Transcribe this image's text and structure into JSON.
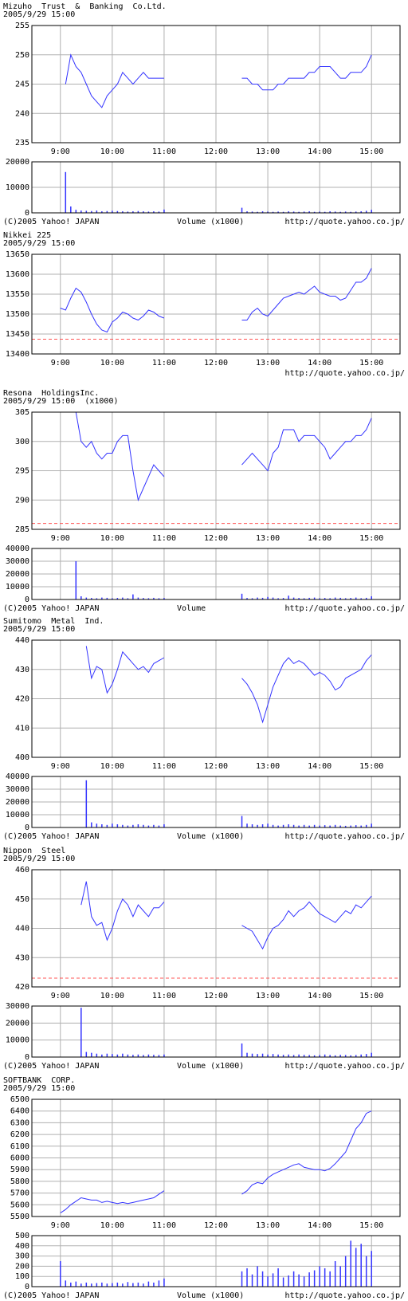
{
  "chart_data": [
    {
      "type": "line",
      "title": "Mizuho  Trust  &  Banking  Co.Ltd.",
      "subtitle": "2005/9/29 15:00",
      "x": [
        9,
        9.1,
        9.2,
        9.3,
        9.4,
        9.5,
        9.6,
        9.7,
        9.8,
        9.9,
        10,
        10.1,
        10.2,
        10.3,
        10.4,
        10.5,
        10.6,
        10.7,
        10.8,
        10.9,
        11,
        12,
        12.5,
        12.6,
        12.7,
        12.8,
        12.9,
        13,
        13.1,
        13.2,
        13.3,
        13.4,
        13.5,
        13.6,
        13.7,
        13.8,
        13.9,
        14,
        14.1,
        14.2,
        14.3,
        14.4,
        14.5,
        14.6,
        14.7,
        14.8,
        14.9,
        15
      ],
      "values": [
        null,
        245,
        250,
        248,
        247,
        245,
        243,
        242,
        241,
        243,
        244,
        245,
        247,
        246,
        245,
        246,
        247,
        246,
        246,
        246,
        246,
        null,
        246,
        246,
        245,
        245,
        244,
        244,
        244,
        245,
        245,
        246,
        246,
        246,
        246,
        247,
        247,
        248,
        248,
        248,
        247,
        246,
        246,
        247,
        247,
        247,
        248,
        250
      ],
      "color": "#3333ff",
      "xlim": [
        8.45,
        15.55
      ],
      "xticks": [
        {
          "value": 9,
          "label": "9:00"
        },
        {
          "value": 10,
          "label": "10:00"
        },
        {
          "value": 11,
          "label": "11:00"
        },
        {
          "value": 12,
          "label": "12:00"
        },
        {
          "value": 13,
          "label": "13:00"
        },
        {
          "value": 14,
          "label": "14:00"
        },
        {
          "value": 15,
          "label": "15:00"
        }
      ],
      "ylim": [
        235,
        255
      ],
      "yticks": [
        235,
        240,
        245,
        250,
        255
      ],
      "grid": true,
      "ref_line": {
        "value": 235,
        "color": "#ff5555"
      },
      "volume": {
        "label": "Volume (x1000)",
        "color": "#3333ff",
        "ylim": [
          0,
          20000
        ],
        "yticks": [
          0,
          10000,
          20000
        ],
        "values": [
          null,
          16000,
          2500,
          1200,
          900,
          800,
          700,
          900,
          600,
          700,
          800,
          700,
          600,
          500,
          600,
          700,
          600,
          500,
          600,
          500,
          1300,
          null,
          2000,
          600,
          500,
          400,
          600,
          500,
          400,
          500,
          400,
          600,
          500,
          400,
          500,
          600,
          400,
          500,
          400,
          600,
          500,
          400,
          500,
          400,
          500,
          600,
          800,
          1200
        ]
      },
      "copyright": "(C)2005 Yahoo! JAPAN",
      "source": "http://quote.yahoo.co.jp/"
    },
    {
      "type": "line",
      "title": "Nikkei 225",
      "subtitle": "2005/9/29 15:00",
      "x": [
        9,
        9.1,
        9.2,
        9.3,
        9.4,
        9.5,
        9.6,
        9.7,
        9.8,
        9.9,
        10,
        10.1,
        10.2,
        10.3,
        10.4,
        10.5,
        10.6,
        10.7,
        10.8,
        10.9,
        11,
        12,
        12.5,
        12.6,
        12.7,
        12.8,
        12.9,
        13,
        13.1,
        13.2,
        13.3,
        13.4,
        13.5,
        13.6,
        13.7,
        13.8,
        13.9,
        14,
        14.1,
        14.2,
        14.3,
        14.4,
        14.5,
        14.6,
        14.7,
        14.8,
        14.9,
        15
      ],
      "values": [
        13515,
        13510,
        13540,
        13565,
        13555,
        13530,
        13500,
        13475,
        13460,
        13455,
        13480,
        13490,
        13505,
        13500,
        13490,
        13485,
        13495,
        13510,
        13505,
        13495,
        13490,
        null,
        13485,
        13485,
        13505,
        13515,
        13500,
        13495,
        13510,
        13525,
        13540,
        13545,
        13550,
        13555,
        13550,
        13560,
        13570,
        13555,
        13550,
        13545,
        13545,
        13535,
        13540,
        13560,
        13580,
        13580,
        13590,
        13615
      ],
      "color": "#3333ff",
      "xlim": [
        8.45,
        15.55
      ],
      "xticks": [
        {
          "value": 9,
          "label": "9:00"
        },
        {
          "value": 10,
          "label": "10:00"
        },
        {
          "value": 11,
          "label": "11:00"
        },
        {
          "value": 12,
          "label": "12:00"
        },
        {
          "value": 13,
          "label": "13:00"
        },
        {
          "value": 14,
          "label": "14:00"
        },
        {
          "value": 15,
          "label": "15:00"
        }
      ],
      "ylim": [
        13400,
        13650
      ],
      "yticks": [
        13400,
        13450,
        13500,
        13550,
        13600,
        13650
      ],
      "grid": true,
      "ref_line": {
        "value": 13437,
        "color": "#ff5555"
      },
      "source": "http://quote.yahoo.co.jp/"
    },
    {
      "type": "line",
      "title": "Resona  HoldingsInc.",
      "subtitle": "2005/9/29 15:00  (x1000)",
      "x": [
        9,
        9.1,
        9.2,
        9.3,
        9.4,
        9.5,
        9.6,
        9.7,
        9.8,
        9.9,
        10,
        10.1,
        10.2,
        10.3,
        10.4,
        10.5,
        10.6,
        10.7,
        10.8,
        10.9,
        11,
        12,
        12.5,
        12.6,
        12.7,
        12.8,
        12.9,
        13,
        13.1,
        13.2,
        13.3,
        13.4,
        13.5,
        13.6,
        13.7,
        13.8,
        13.9,
        14,
        14.1,
        14.2,
        14.3,
        14.4,
        14.5,
        14.6,
        14.7,
        14.8,
        14.9,
        15
      ],
      "values": [
        null,
        null,
        null,
        305,
        300,
        299,
        300,
        298,
        297,
        298,
        298,
        300,
        301,
        301,
        295,
        290,
        292,
        294,
        296,
        295,
        294,
        null,
        296,
        297,
        298,
        297,
        296,
        295,
        298,
        299,
        302,
        302,
        302,
        300,
        301,
        301,
        301,
        300,
        299,
        297,
        298,
        299,
        300,
        300,
        301,
        301,
        302,
        304
      ],
      "color": "#3333ff",
      "xlim": [
        8.45,
        15.55
      ],
      "xticks": [
        {
          "value": 9,
          "label": "9:00"
        },
        {
          "value": 10,
          "label": "10:00"
        },
        {
          "value": 11,
          "label": "11:00"
        },
        {
          "value": 12,
          "label": "12:00"
        },
        {
          "value": 13,
          "label": "13:00"
        },
        {
          "value": 14,
          "label": "14:00"
        },
        {
          "value": 15,
          "label": "15:00"
        }
      ],
      "ylim": [
        285,
        305
      ],
      "yticks": [
        285,
        290,
        295,
        300,
        305
      ],
      "grid": true,
      "ref_line": {
        "value": 286,
        "color": "#ff5555"
      },
      "volume": {
        "label": "Volume",
        "color": "#3333ff",
        "ylim": [
          0,
          40000
        ],
        "yticks": [
          0,
          10000,
          20000,
          30000,
          40000
        ],
        "values": [
          null,
          null,
          null,
          30000,
          2500,
          1500,
          1200,
          1000,
          1500,
          1300,
          1000,
          1200,
          1500,
          1000,
          4000,
          1500,
          1200,
          1000,
          1300,
          1000,
          1200,
          null,
          4500,
          1200,
          1000,
          1500,
          1300,
          2000,
          1500,
          1000,
          1200,
          3000,
          1500,
          1200,
          1000,
          1300,
          1500,
          1000,
          1200,
          1000,
          1500,
          1300,
          1000,
          1200,
          1500,
          1000,
          1300,
          2500
        ]
      },
      "copyright": "(C)2005 Yahoo! JAPAN",
      "source": "http://quote.yahoo.co.jp/"
    },
    {
      "type": "line",
      "title": "Sumitomo  Metal  Ind.",
      "subtitle": "2005/9/29 15:00",
      "x": [
        9,
        9.1,
        9.2,
        9.3,
        9.4,
        9.5,
        9.6,
        9.7,
        9.8,
        9.9,
        10,
        10.1,
        10.2,
        10.3,
        10.4,
        10.5,
        10.6,
        10.7,
        10.8,
        10.9,
        11,
        12,
        12.5,
        12.6,
        12.7,
        12.8,
        12.9,
        13,
        13.1,
        13.2,
        13.3,
        13.4,
        13.5,
        13.6,
        13.7,
        13.8,
        13.9,
        14,
        14.1,
        14.2,
        14.3,
        14.4,
        14.5,
        14.6,
        14.7,
        14.8,
        14.9,
        15
      ],
      "values": [
        null,
        null,
        null,
        null,
        null,
        438,
        427,
        431,
        430,
        422,
        425,
        430,
        436,
        434,
        432,
        430,
        431,
        429,
        432,
        433,
        434,
        null,
        427,
        425,
        422,
        418,
        412,
        418,
        424,
        428,
        432,
        434,
        432,
        433,
        432,
        430,
        428,
        429,
        428,
        426,
        423,
        424,
        427,
        428,
        429,
        430,
        433,
        435
      ],
      "color": "#3333ff",
      "xlim": [
        8.45,
        15.55
      ],
      "xticks": [
        {
          "value": 9,
          "label": "9:00"
        },
        {
          "value": 10,
          "label": "10:00"
        },
        {
          "value": 11,
          "label": "11:00"
        },
        {
          "value": 12,
          "label": "12:00"
        },
        {
          "value": 13,
          "label": "13:00"
        },
        {
          "value": 14,
          "label": "14:00"
        },
        {
          "value": 15,
          "label": "15:00"
        }
      ],
      "ylim": [
        400,
        440
      ],
      "yticks": [
        400,
        410,
        420,
        430,
        440
      ],
      "grid": true,
      "ref_line": {
        "value": 400,
        "color": "#ff5555"
      },
      "volume": {
        "label": "Volume (x1000)",
        "color": "#3333ff",
        "ylim": [
          0,
          40000
        ],
        "yticks": [
          0,
          10000,
          20000,
          30000,
          40000
        ],
        "values": [
          null,
          null,
          null,
          null,
          null,
          37000,
          4000,
          3000,
          2500,
          2000,
          3000,
          2500,
          2000,
          1500,
          2000,
          2500,
          2000,
          1500,
          2000,
          1500,
          2500,
          null,
          9000,
          3000,
          2500,
          2000,
          2500,
          3000,
          2000,
          1500,
          2000,
          2500,
          2000,
          1500,
          2000,
          1500,
          2000,
          1500,
          1800,
          1500,
          2000,
          1500,
          1300,
          1500,
          1800,
          1500,
          2000,
          3000
        ]
      },
      "copyright": "(C)2005 Yahoo! JAPAN",
      "source": "http://quote.yahoo.co.jp/"
    },
    {
      "type": "line",
      "title": "Nippon  Steel",
      "subtitle": "2005/9/29 15:00",
      "x": [
        9,
        9.1,
        9.2,
        9.3,
        9.4,
        9.5,
        9.6,
        9.7,
        9.8,
        9.9,
        10,
        10.1,
        10.2,
        10.3,
        10.4,
        10.5,
        10.6,
        10.7,
        10.8,
        10.9,
        11,
        12,
        12.5,
        12.6,
        12.7,
        12.8,
        12.9,
        13,
        13.1,
        13.2,
        13.3,
        13.4,
        13.5,
        13.6,
        13.7,
        13.8,
        13.9,
        14,
        14.1,
        14.2,
        14.3,
        14.4,
        14.5,
        14.6,
        14.7,
        14.8,
        14.9,
        15
      ],
      "values": [
        null,
        null,
        null,
        null,
        448,
        456,
        444,
        441,
        442,
        436,
        440,
        446,
        450,
        448,
        444,
        448,
        446,
        444,
        447,
        447,
        449,
        null,
        441,
        440,
        439,
        436,
        433,
        437,
        440,
        441,
        443,
        446,
        444,
        446,
        447,
        449,
        447,
        445,
        444,
        443,
        442,
        444,
        446,
        445,
        448,
        447,
        449,
        451
      ],
      "color": "#3333ff",
      "xlim": [
        8.45,
        15.55
      ],
      "xticks": [
        {
          "value": 9,
          "label": "9:00"
        },
        {
          "value": 10,
          "label": "10:00"
        },
        {
          "value": 11,
          "label": "11:00"
        },
        {
          "value": 12,
          "label": "12:00"
        },
        {
          "value": 13,
          "label": "13:00"
        },
        {
          "value": 14,
          "label": "14:00"
        },
        {
          "value": 15,
          "label": "15:00"
        }
      ],
      "ylim": [
        420,
        460
      ],
      "yticks": [
        420,
        430,
        440,
        450,
        460
      ],
      "grid": true,
      "ref_line": {
        "value": 423,
        "color": "#ff5555"
      },
      "volume": {
        "label": "Volume (x1000)",
        "color": "#3333ff",
        "ylim": [
          0,
          30000
        ],
        "yticks": [
          0,
          10000,
          20000,
          30000
        ],
        "values": [
          null,
          null,
          null,
          null,
          29000,
          3000,
          2500,
          2000,
          1500,
          2000,
          1800,
          1500,
          2000,
          1500,
          1300,
          1500,
          1200,
          1500,
          1300,
          1200,
          1500,
          null,
          8000,
          2500,
          2000,
          1800,
          2000,
          1500,
          1800,
          1500,
          1300,
          1500,
          1200,
          1500,
          1300,
          1200,
          1000,
          1200,
          1500,
          1200,
          1000,
          1300,
          1200,
          1000,
          1200,
          1500,
          1800,
          2500
        ]
      },
      "copyright": "(C)2005 Yahoo! JAPAN",
      "source": "http://quote.yahoo.co.jp/"
    },
    {
      "type": "line",
      "title": "SOFTBANK  CORP.",
      "subtitle": "2005/9/29 15:00",
      "x": [
        9,
        9.1,
        9.2,
        9.3,
        9.4,
        9.5,
        9.6,
        9.7,
        9.8,
        9.9,
        10,
        10.1,
        10.2,
        10.3,
        10.4,
        10.5,
        10.6,
        10.7,
        10.8,
        10.9,
        11,
        12,
        12.5,
        12.6,
        12.7,
        12.8,
        12.9,
        13,
        13.1,
        13.2,
        13.3,
        13.4,
        13.5,
        13.6,
        13.7,
        13.8,
        13.9,
        14,
        14.1,
        14.2,
        14.3,
        14.4,
        14.5,
        14.6,
        14.7,
        14.8,
        14.9,
        15
      ],
      "values": [
        5530,
        5560,
        5600,
        5630,
        5660,
        5650,
        5640,
        5640,
        5620,
        5630,
        5620,
        5610,
        5620,
        5610,
        5620,
        5630,
        5640,
        5650,
        5660,
        5690,
        5720,
        null,
        5690,
        5720,
        5770,
        5790,
        5780,
        5830,
        5860,
        5880,
        5900,
        5920,
        5940,
        5950,
        5920,
        5910,
        5900,
        5900,
        5890,
        5910,
        5950,
        6000,
        6050,
        6150,
        6250,
        6300,
        6380,
        6400
      ],
      "color": "#3333ff",
      "xlim": [
        8.45,
        15.55
      ],
      "xticks": [
        {
          "value": 9,
          "label": "9:00"
        },
        {
          "value": 10,
          "label": "10:00"
        },
        {
          "value": 11,
          "label": "11:00"
        },
        {
          "value": 12,
          "label": "12:00"
        },
        {
          "value": 13,
          "label": "13:00"
        },
        {
          "value": 14,
          "label": "14:00"
        },
        {
          "value": 15,
          "label": "15:00"
        }
      ],
      "ylim": [
        5500,
        6500
      ],
      "yticks": [
        5500,
        5600,
        5700,
        5800,
        5900,
        6000,
        6100,
        6200,
        6300,
        6400,
        6500
      ],
      "grid": true,
      "ref_line": {
        "value": 5500,
        "color": "#ff5555"
      },
      "volume": {
        "label": "Volume (x1000)",
        "color": "#3333ff",
        "ylim": [
          0,
          500
        ],
        "yticks": [
          0,
          100,
          200,
          300,
          400,
          500
        ],
        "values": [
          250,
          60,
          40,
          50,
          30,
          40,
          30,
          35,
          40,
          30,
          35,
          40,
          30,
          45,
          35,
          40,
          30,
          50,
          40,
          60,
          80,
          null,
          150,
          180,
          120,
          200,
          150,
          100,
          130,
          180,
          90,
          110,
          150,
          120,
          100,
          140,
          160,
          200,
          180,
          150,
          250,
          200,
          300,
          450,
          380,
          420,
          300,
          350
        ]
      },
      "copyright": "(C)2005 Yahoo! JAPAN",
      "source": "http://quote.yahoo.co.jp/"
    }
  ]
}
